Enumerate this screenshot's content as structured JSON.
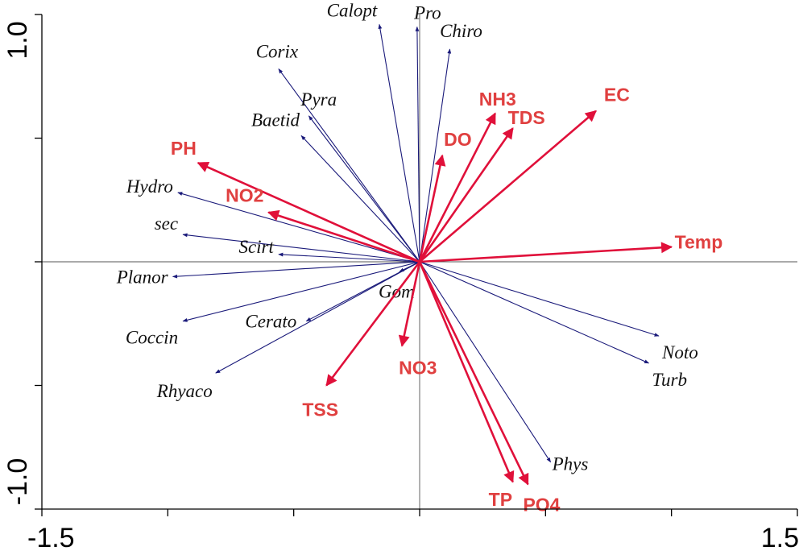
{
  "chart_data": {
    "type": "biplot",
    "xlim": [
      -1.5,
      1.5
    ],
    "ylim": [
      -1.0,
      1.0
    ],
    "x_ticks": [
      -1.5,
      -1.0,
      -0.5,
      0.0,
      0.5,
      1.0,
      1.5
    ],
    "y_ticks": [
      -1.0,
      -0.5,
      0.0,
      0.5,
      1.0
    ],
    "x_tick_labels": [
      {
        "value": -1.5,
        "text": "-1.5"
      },
      {
        "value": 1.5,
        "text": "1.5"
      }
    ],
    "y_tick_labels": [
      {
        "value": 1.0,
        "text": "1.0"
      },
      {
        "value": -1.0,
        "text": "-1.0"
      }
    ],
    "zero_lines": true,
    "colors": {
      "species_arrow": "#1a1a7a",
      "species_label": "#111111",
      "env_arrow": "#e0103a",
      "env_label": "#e04040"
    },
    "species": [
      {
        "name": "Calopt",
        "x": -0.16,
        "y": 0.96
      },
      {
        "name": "Pro",
        "x": -0.01,
        "y": 0.95
      },
      {
        "name": "Chiro",
        "x": 0.12,
        "y": 0.86
      },
      {
        "name": "Corix",
        "x": -0.56,
        "y": 0.78
      },
      {
        "name": "Pyra",
        "x": -0.44,
        "y": 0.59
      },
      {
        "name": "Baetid",
        "x": -0.47,
        "y": 0.51
      },
      {
        "name": "Hydro",
        "x": -0.96,
        "y": 0.28
      },
      {
        "name": "sec",
        "x": -0.94,
        "y": 0.11
      },
      {
        "name": "Scirt",
        "x": -0.56,
        "y": 0.03
      },
      {
        "name": "Planor",
        "x": -0.98,
        "y": -0.06
      },
      {
        "name": "Gom",
        "x": -0.08,
        "y": -0.04
      },
      {
        "name": "Cerato",
        "x": -0.45,
        "y": -0.24
      },
      {
        "name": "Coccin",
        "x": -0.94,
        "y": -0.24
      },
      {
        "name": "Rhyaco",
        "x": -0.81,
        "y": -0.45
      },
      {
        "name": "Noto",
        "x": 0.95,
        "y": -0.3
      },
      {
        "name": "Turb",
        "x": 0.91,
        "y": -0.41
      },
      {
        "name": "Phys",
        "x": 0.52,
        "y": -0.81
      }
    ],
    "environmental": [
      {
        "name": "EC",
        "x": 0.7,
        "y": 0.61
      },
      {
        "name": "NH3",
        "x": 0.3,
        "y": 0.6
      },
      {
        "name": "TDS",
        "x": 0.37,
        "y": 0.54
      },
      {
        "name": "DO",
        "x": 0.09,
        "y": 0.43
      },
      {
        "name": "PH",
        "x": -0.88,
        "y": 0.4
      },
      {
        "name": "NO2",
        "x": -0.6,
        "y": 0.2
      },
      {
        "name": "Temp",
        "x": 1.0,
        "y": 0.06
      },
      {
        "name": "NO3",
        "x": -0.07,
        "y": -0.34
      },
      {
        "name": "TSS",
        "x": -0.37,
        "y": -0.5
      },
      {
        "name": "TP",
        "x": 0.37,
        "y": -0.89
      },
      {
        "name": "PO4",
        "x": 0.43,
        "y": -0.9
      }
    ]
  }
}
